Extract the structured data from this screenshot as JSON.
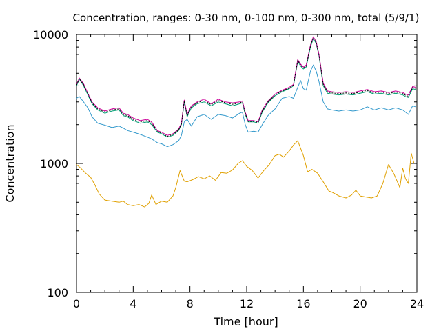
{
  "chart_data": {
    "type": "line",
    "title": "Concentration, ranges: 0-30 nm, 0-100 nm, 0-300 nm, total (5/9/1)",
    "xlabel": "Time [hour]",
    "ylabel": "Concentration",
    "xlim": [
      0,
      24
    ],
    "ylim": [
      100,
      10000
    ],
    "y_scale": "log",
    "grid": false,
    "xticks": [
      "0",
      "4",
      "8",
      "12",
      "16",
      "20",
      "24"
    ],
    "yticks": [
      "100",
      "1000",
      "10000"
    ],
    "series": [
      {
        "color": "#e0a000",
        "x": [
          0.0,
          0.3,
          0.6,
          1.0,
          1.3,
          1.6,
          2.0,
          2.5,
          3.0,
          3.3,
          3.6,
          4.0,
          4.4,
          4.8,
          5.1,
          5.3,
          5.6,
          6.0,
          6.4,
          6.8,
          7.0,
          7.3,
          7.6,
          7.8,
          8.2,
          8.6,
          9.0,
          9.4,
          9.8,
          10.2,
          10.6,
          11.0,
          11.4,
          11.7,
          12.0,
          12.4,
          12.8,
          13.2,
          13.6,
          14.0,
          14.3,
          14.6,
          15.0,
          15.3,
          15.6,
          16.0,
          16.3,
          16.6,
          17.0,
          17.4,
          17.8,
          18.0,
          18.5,
          19.0,
          19.4,
          19.7,
          20.0,
          20.4,
          20.8,
          21.2,
          21.6,
          22.0,
          22.2,
          22.4,
          22.8,
          23.0,
          23.2,
          23.4,
          23.6,
          23.8
        ],
        "y": [
          980,
          920,
          850,
          780,
          680,
          580,
          520,
          510,
          500,
          510,
          480,
          470,
          480,
          460,
          490,
          570,
          480,
          510,
          500,
          560,
          650,
          880,
          730,
          720,
          750,
          790,
          760,
          800,
          740,
          850,
          840,
          890,
          1000,
          1050,
          950,
          880,
          770,
          880,
          980,
          1150,
          1180,
          1120,
          1250,
          1390,
          1500,
          1150,
          860,
          900,
          840,
          720,
          610,
          600,
          560,
          540,
          570,
          620,
          560,
          550,
          540,
          560,
          700,
          980,
          900,
          820,
          650,
          920,
          760,
          700,
          1200,
          1000
        ]
      },
      {
        "color": "#3399cc",
        "x": [
          0.0,
          0.2,
          0.5,
          0.8,
          1.1,
          1.5,
          2.0,
          2.5,
          3.0,
          3.3,
          3.6,
          4.0,
          4.5,
          5.0,
          5.3,
          5.7,
          6.0,
          6.4,
          6.8,
          7.2,
          7.4,
          7.6,
          7.8,
          8.1,
          8.5,
          9.0,
          9.5,
          10.0,
          10.5,
          11.0,
          11.5,
          11.7,
          11.9,
          12.1,
          12.5,
          12.8,
          13.1,
          13.5,
          14.0,
          14.5,
          15.0,
          15.3,
          15.6,
          15.8,
          16.0,
          16.2,
          16.5,
          16.7,
          16.9,
          17.1,
          17.4,
          17.7,
          18.0,
          18.5,
          19.0,
          19.5,
          20.0,
          20.5,
          21.0,
          21.5,
          22.0,
          22.5,
          23.0,
          23.2,
          23.4,
          23.7,
          23.9
        ],
        "y": [
          3200,
          3300,
          3000,
          2700,
          2300,
          2050,
          1980,
          1900,
          1950,
          1880,
          1800,
          1750,
          1680,
          1600,
          1550,
          1450,
          1420,
          1350,
          1400,
          1500,
          1650,
          2100,
          2200,
          1950,
          2300,
          2400,
          2200,
          2400,
          2350,
          2250,
          2450,
          2500,
          2000,
          1750,
          1780,
          1750,
          2000,
          2350,
          2650,
          3200,
          3300,
          3200,
          3900,
          4400,
          3800,
          3700,
          5200,
          5800,
          5200,
          4300,
          3000,
          2650,
          2600,
          2550,
          2600,
          2550,
          2600,
          2750,
          2600,
          2700,
          2600,
          2700,
          2600,
          2500,
          2400,
          2800,
          2750
        ]
      },
      {
        "color": "#009e73",
        "x": [
          0.0,
          0.2,
          0.5,
          0.8,
          1.1,
          1.5,
          2.0,
          2.5,
          3.0,
          3.3,
          3.6,
          4.0,
          4.5,
          5.0,
          5.3,
          5.7,
          6.0,
          6.4,
          6.8,
          7.2,
          7.4,
          7.6,
          7.8,
          8.1,
          8.5,
          9.0,
          9.5,
          10.0,
          10.5,
          11.0,
          11.5,
          11.7,
          11.9,
          12.1,
          12.5,
          12.8,
          13.1,
          13.5,
          14.0,
          14.5,
          15.0,
          15.3,
          15.6,
          15.8,
          16.0,
          16.2,
          16.5,
          16.7,
          16.9,
          17.1,
          17.4,
          17.7,
          18.0,
          18.5,
          19.0,
          19.5,
          20.0,
          20.5,
          21.0,
          21.5,
          22.0,
          22.5,
          23.0,
          23.2,
          23.4,
          23.7,
          23.9
        ],
        "y": [
          4000,
          4500,
          4000,
          3400,
          2900,
          2600,
          2450,
          2550,
          2600,
          2350,
          2300,
          2150,
          2050,
          2100,
          2000,
          1750,
          1700,
          1600,
          1650,
          1800,
          2000,
          3000,
          2300,
          2700,
          2900,
          3000,
          2800,
          3000,
          2900,
          2800,
          2900,
          2950,
          2400,
          2100,
          2100,
          2050,
          2500,
          2950,
          3350,
          3600,
          3800,
          4000,
          6200,
          5700,
          5400,
          5600,
          8000,
          9300,
          8500,
          6800,
          4000,
          3500,
          3450,
          3400,
          3450,
          3400,
          3500,
          3600,
          3450,
          3500,
          3400,
          3500,
          3400,
          3300,
          3250,
          3800,
          3750
        ]
      },
      {
        "color": "#cc0099",
        "x": [
          0.0,
          0.2,
          0.5,
          0.8,
          1.1,
          1.5,
          2.0,
          2.5,
          3.0,
          3.3,
          3.6,
          4.0,
          4.5,
          5.0,
          5.3,
          5.7,
          6.0,
          6.4,
          6.8,
          7.2,
          7.4,
          7.6,
          7.8,
          8.1,
          8.5,
          9.0,
          9.5,
          10.0,
          10.5,
          11.0,
          11.5,
          11.7,
          11.9,
          12.1,
          12.5,
          12.8,
          13.1,
          13.5,
          14.0,
          14.5,
          15.0,
          15.3,
          15.6,
          15.8,
          16.0,
          16.2,
          16.5,
          16.7,
          16.9,
          17.1,
          17.4,
          17.7,
          18.0,
          18.5,
          19.0,
          19.5,
          20.0,
          20.5,
          21.0,
          21.5,
          22.0,
          22.5,
          23.0,
          23.2,
          23.4,
          23.7,
          23.9
        ],
        "y": [
          4100,
          4600,
          4150,
          3500,
          3000,
          2700,
          2550,
          2650,
          2700,
          2450,
          2400,
          2250,
          2150,
          2200,
          2100,
          1800,
          1750,
          1650,
          1700,
          1850,
          2050,
          3100,
          2400,
          2800,
          3000,
          3150,
          2900,
          3150,
          3000,
          2950,
          3000,
          3050,
          2500,
          2150,
          2150,
          2100,
          2600,
          3050,
          3450,
          3700,
          3900,
          4100,
          6400,
          5900,
          5600,
          5800,
          8300,
          9600,
          8800,
          7000,
          4200,
          3650,
          3600,
          3550,
          3600,
          3550,
          3650,
          3750,
          3600,
          3650,
          3550,
          3650,
          3550,
          3450,
          3400,
          3950,
          3900
        ]
      },
      {
        "color": "#000000",
        "dashed": true,
        "x": [
          0.0,
          0.2,
          0.5,
          0.8,
          1.1,
          1.5,
          2.0,
          2.5,
          3.0,
          3.3,
          3.6,
          4.0,
          4.5,
          5.0,
          5.3,
          5.7,
          6.0,
          6.4,
          6.8,
          7.2,
          7.4,
          7.6,
          7.8,
          8.1,
          8.5,
          9.0,
          9.5,
          10.0,
          10.5,
          11.0,
          11.5,
          11.7,
          11.9,
          12.1,
          12.5,
          12.8,
          13.1,
          13.5,
          14.0,
          14.5,
          15.0,
          15.3,
          15.6,
          15.8,
          16.0,
          16.2,
          16.5,
          16.7,
          16.9,
          17.1,
          17.4,
          17.7,
          18.0,
          18.5,
          19.0,
          19.5,
          20.0,
          20.5,
          21.0,
          21.5,
          22.0,
          22.5,
          23.0,
          23.2,
          23.4,
          23.7,
          23.9
        ],
        "y": [
          4050,
          4550,
          4080,
          3450,
          2950,
          2650,
          2500,
          2600,
          2650,
          2400,
          2350,
          2200,
          2100,
          2150,
          2050,
          1780,
          1720,
          1620,
          1680,
          1820,
          2020,
          3050,
          2350,
          2750,
          2950,
          3080,
          2850,
          3080,
          2950,
          2880,
          2950,
          3000,
          2450,
          2120,
          2120,
          2080,
          2550,
          3000,
          3400,
          3650,
          3850,
          4050,
          6300,
          5800,
          5500,
          5700,
          8150,
          9450,
          8650,
          6900,
          4100,
          3580,
          3520,
          3480,
          3520,
          3480,
          3580,
          3680,
          3520,
          3580,
          3480,
          3580,
          3480,
          3380,
          3320,
          3880,
          3820
        ]
      }
    ]
  }
}
